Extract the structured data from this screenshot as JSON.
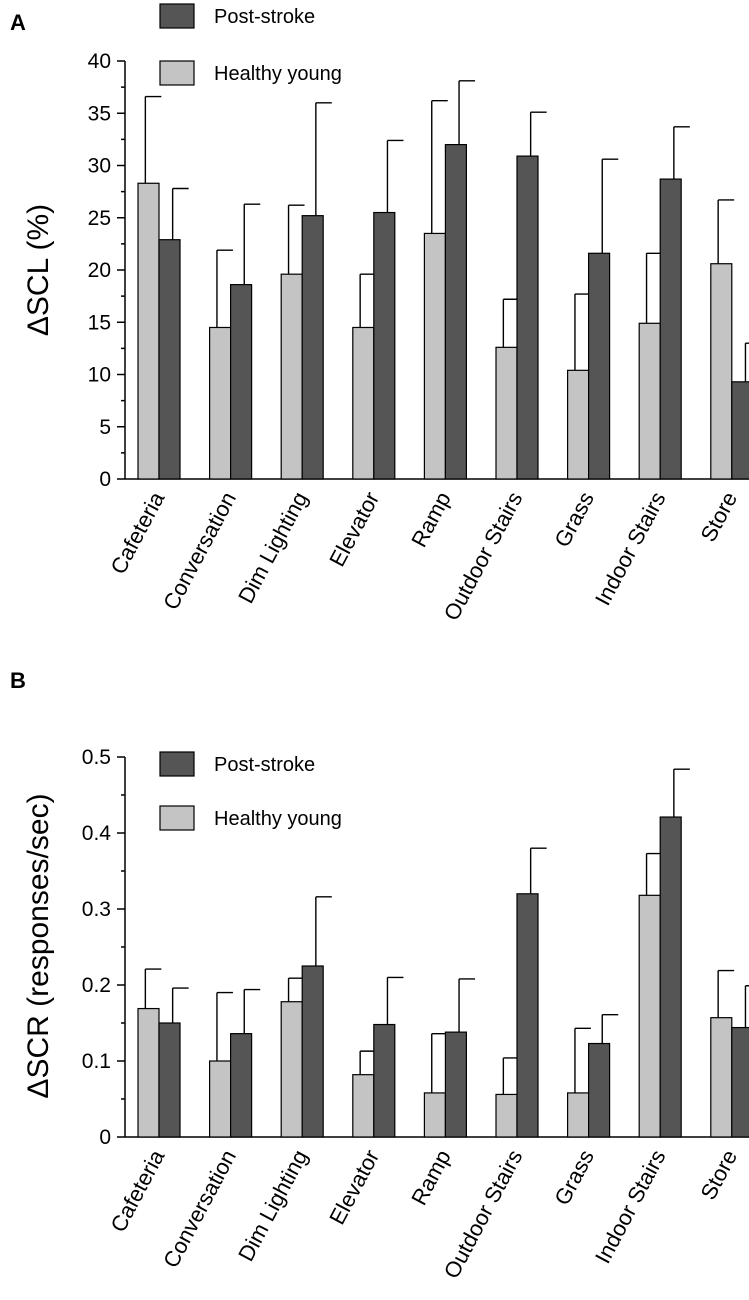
{
  "chart_data": [
    {
      "panel": "A",
      "type": "bar",
      "ylabel": "ΔSCL (%)",
      "ylim": [
        0,
        40
      ],
      "yticks": [
        "0",
        "5",
        "10",
        "15",
        "20",
        "25",
        "30",
        "35",
        "40"
      ],
      "yticks_values": [
        0,
        5,
        10,
        15,
        20,
        25,
        30,
        35,
        40
      ],
      "categories": [
        "Cafeteria",
        "Conversation",
        "Dim Lighting",
        "Elevator",
        "Ramp",
        "Outdoor Stairs",
        "Grass",
        "Indoor Stairs",
        "Store"
      ],
      "legend_position": "top-left",
      "series": [
        {
          "name": "Post-stroke",
          "color": "#555555",
          "values": [
            22.9,
            18.6,
            25.2,
            25.5,
            32.0,
            30.9,
            21.6,
            28.7,
            9.3
          ],
          "errors": [
            4.9,
            7.7,
            10.8,
            6.9,
            6.1,
            4.2,
            9.0,
            5.0,
            3.7
          ]
        },
        {
          "name": "Healthy young",
          "color": "#c4c4c4",
          "values": [
            28.3,
            14.5,
            19.6,
            14.5,
            23.5,
            12.6,
            10.4,
            14.9,
            20.6
          ],
          "errors": [
            8.3,
            7.4,
            6.6,
            5.1,
            12.7,
            4.6,
            7.3,
            6.7,
            6.1
          ]
        }
      ]
    },
    {
      "panel": "B",
      "type": "bar",
      "ylabel": "ΔSCR (responses/sec)",
      "ylim": [
        0,
        0.5
      ],
      "yticks": [
        "0",
        "0.1",
        "0.2",
        "0.3",
        "0.4",
        "0.5"
      ],
      "yticks_values": [
        0,
        0.1,
        0.2,
        0.3,
        0.4,
        0.5
      ],
      "categories": [
        "Cafeteria",
        "Conversation",
        "Dim Lighting",
        "Elevator",
        "Ramp",
        "Outdoor Stairs",
        "Grass",
        "Indoor Stairs",
        "Store"
      ],
      "legend_position": "top-left",
      "series": [
        {
          "name": "Post-stroke",
          "color": "#555555",
          "values": [
            0.15,
            0.136,
            0.225,
            0.148,
            0.138,
            0.32,
            0.123,
            0.421,
            0.144
          ],
          "errors": [
            0.046,
            0.058,
            0.091,
            0.062,
            0.07,
            0.06,
            0.038,
            0.063,
            0.055
          ]
        },
        {
          "name": "Healthy young",
          "color": "#c4c4c4",
          "values": [
            0.169,
            0.1,
            0.178,
            0.082,
            0.058,
            0.056,
            0.058,
            0.318,
            0.157
          ],
          "errors": [
            0.052,
            0.09,
            0.031,
            0.031,
            0.078,
            0.048,
            0.085,
            0.055,
            0.062
          ]
        }
      ]
    }
  ]
}
